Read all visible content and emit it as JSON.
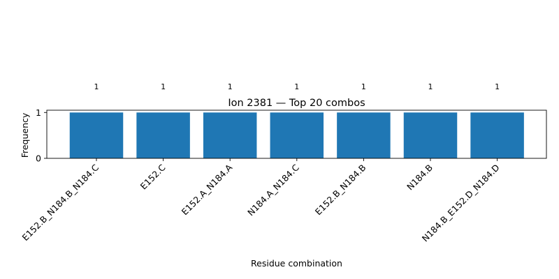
{
  "chart_data": {
    "type": "bar",
    "title": "Ion 2381 — Top 20 combos",
    "xlabel": "Residue combination",
    "ylabel": "Frequency",
    "categories": [
      "E152.B_N184.B_N184.C",
      "E152.C",
      "E152.A_N184.A",
      "N184.A_N184.C",
      "E152.B_N184.B",
      "N184.B",
      "N184.B_E152.D_N184.D"
    ],
    "values": [
      1,
      1,
      1,
      1,
      1,
      1,
      1
    ],
    "data_labels": [
      "1",
      "1",
      "1",
      "1",
      "1",
      "1",
      "1"
    ],
    "yticks": [
      0,
      1
    ],
    "ylim": [
      0,
      1.05
    ],
    "bar_color": "#1f77b4",
    "grid": false,
    "legend": "none"
  }
}
